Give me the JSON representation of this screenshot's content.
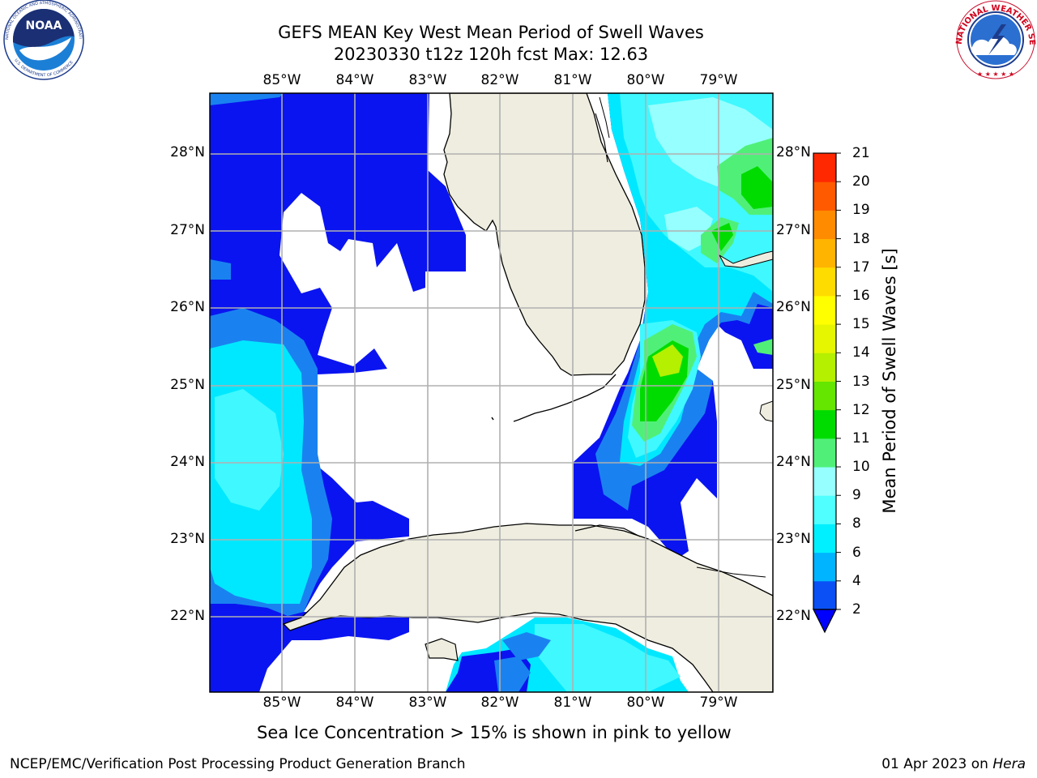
{
  "header": {
    "title_line1": "GEFS MEAN Key West Mean Period of Swell Waves",
    "title_line2": "20230330 t12z 120h fcst   Max: 12.63"
  },
  "logos": {
    "noaa_text": "NOAA",
    "noaa_ring_text": "NATIONAL OCEANIC AND ATMOSPHERIC ADMINISTRATION",
    "noaa_ring_bottom": "U.S. DEPARTMENT OF COMMERCE",
    "nws_ring_text": "NATIONAL WEATHER SERVICE"
  },
  "map": {
    "lon_ticks": [
      "85°W",
      "84°W",
      "83°W",
      "82°W",
      "81°W",
      "80°W",
      "79°W"
    ],
    "lat_ticks": [
      "28°N",
      "27°N",
      "26°N",
      "25°N",
      "24°N",
      "23°N",
      "22°N"
    ],
    "land_color": "#eeeddf",
    "grid_color": "#b0b0b0"
  },
  "colorbar": {
    "label": "Mean Period of Swell Waves [s]",
    "ticks": [
      "2",
      "4",
      "6",
      "8",
      "9",
      "10",
      "11",
      "12",
      "13",
      "14",
      "15",
      "16",
      "17",
      "18",
      "19",
      "20",
      "21"
    ],
    "colors": [
      "#0a50f5",
      "#00b4ff",
      "#00f0ff",
      "#50ffff",
      "#96ffff",
      "#50f078",
      "#00dc00",
      "#64e600",
      "#b4f000",
      "#e6f500",
      "#ffff00",
      "#ffdc00",
      "#ffb400",
      "#ff8c00",
      "#ff5a00",
      "#ff2800",
      "#ff0000"
    ],
    "under_color": "#0000ff"
  },
  "footer": {
    "subtitle": "Sea Ice Concentration > 15% is shown in pink to yellow",
    "credit": "NCEP/EMC/Verification Post Processing Product Generation Branch",
    "date": "01 Apr 2023 on",
    "machine": "Hera"
  }
}
